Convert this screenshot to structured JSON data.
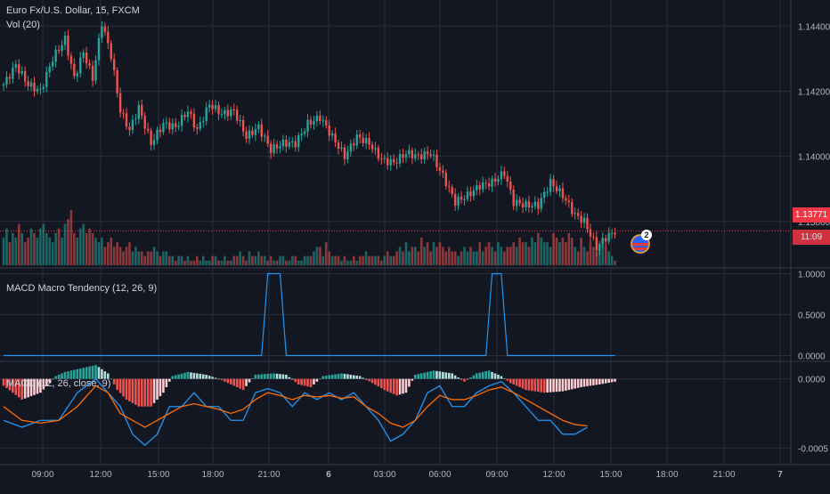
{
  "legend": {
    "symbol": "Euro Fx/U.S. Dollar, 15, FXCM",
    "volume": "Vol (20)",
    "tendency": "MACD Macro Tendency (12, 26, 9)",
    "macd": "MACD (12, 26, close, 9)"
  },
  "price_tags": {
    "last_price": "1.13771",
    "countdown": "11:09"
  },
  "event_badge": {
    "count": "2",
    "icon": "us-flag-icon"
  },
  "colors": {
    "up": "#26a69a",
    "down": "#ef5350",
    "macd_line": "#2196f3",
    "signal_line": "#ff6d00",
    "hist_up": "#26a69a",
    "hist_down": "#ef5350",
    "hist_up_light": "#b2dfdb",
    "hist_down_light": "#ffcdd2",
    "tendency_line": "#2196f3",
    "last_price": "#f23645"
  },
  "chart_data": [
    {
      "type": "candlestick",
      "title": "Euro Fx/U.S. Dollar, 15, FXCM",
      "x_ticks": [
        "09:00",
        "12:00",
        "15:00",
        "18:00",
        "21:00",
        "6",
        "03:00",
        "06:00",
        "09:00",
        "12:00",
        "15:00",
        "18:00",
        "21:00",
        "7"
      ],
      "y_ticks": [
        "1.14400",
        "1.14200",
        "1.14000",
        "1.13800"
      ],
      "ylim": [
        1.1366,
        1.1448
      ],
      "last_price": 1.13771,
      "close_path": [
        [
          0,
          1.1422
        ],
        [
          4,
          1.1428
        ],
        [
          8,
          1.1422
        ],
        [
          12,
          1.142
        ],
        [
          16,
          1.143
        ],
        [
          20,
          1.1436
        ],
        [
          23,
          1.1424
        ],
        [
          26,
          1.1432
        ],
        [
          29,
          1.1424
        ],
        [
          32,
          1.1441
        ],
        [
          35,
          1.1431
        ],
        [
          38,
          1.1414
        ],
        [
          41,
          1.1408
        ],
        [
          44,
          1.1415
        ],
        [
          48,
          1.1404
        ],
        [
          52,
          1.141
        ],
        [
          56,
          1.1409
        ],
        [
          60,
          1.1414
        ],
        [
          63,
          1.1408
        ],
        [
          67,
          1.1416
        ],
        [
          71,
          1.1413
        ],
        [
          75,
          1.1414
        ],
        [
          79,
          1.1406
        ],
        [
          83,
          1.1409
        ],
        [
          87,
          1.1402
        ],
        [
          91,
          1.1404
        ],
        [
          95,
          1.1404
        ],
        [
          99,
          1.141
        ],
        [
          103,
          1.1412
        ],
        [
          107,
          1.1406
        ],
        [
          111,
          1.14
        ],
        [
          115,
          1.1406
        ],
        [
          119,
          1.1404
        ],
        [
          123,
          1.1399
        ],
        [
          127,
          1.1398
        ],
        [
          131,
          1.1401
        ],
        [
          135,
          1.14
        ],
        [
          139,
          1.1401
        ],
        [
          143,
          1.1394
        ],
        [
          147,
          1.1386
        ],
        [
          151,
          1.1388
        ],
        [
          155,
          1.1391
        ],
        [
          159,
          1.1392
        ],
        [
          163,
          1.1395
        ],
        [
          166,
          1.1386
        ],
        [
          170,
          1.1385
        ],
        [
          174,
          1.1385
        ],
        [
          178,
          1.1392
        ],
        [
          182,
          1.1388
        ],
        [
          186,
          1.1382
        ],
        [
          189,
          1.138
        ],
        [
          193,
          1.1372
        ],
        [
          196,
          1.1375
        ],
        [
          199,
          1.1377
        ]
      ],
      "volume": [
        6,
        8,
        5,
        7,
        6,
        9,
        7,
        5,
        6,
        8,
        7,
        6,
        8,
        9,
        7,
        6,
        5,
        7,
        8,
        6,
        9,
        10,
        12,
        7,
        6,
        8,
        9,
        7,
        8,
        7,
        6,
        5,
        6,
        4,
        5,
        6,
        4,
        5,
        4,
        3,
        4,
        5,
        3,
        4,
        3,
        3,
        2,
        3,
        3,
        4,
        3,
        2,
        3,
        3,
        2,
        2,
        1,
        2,
        2,
        1,
        2,
        1,
        1,
        2,
        1,
        2,
        1,
        1,
        2,
        2,
        1,
        1,
        2,
        1,
        1,
        2,
        2,
        3,
        2,
        1,
        3,
        2,
        2,
        3,
        2,
        2,
        1,
        2,
        1,
        1,
        2,
        2,
        1,
        1,
        2,
        2,
        1,
        1,
        2,
        2,
        2,
        3,
        4,
        4,
        2,
        5,
        3,
        2,
        2,
        2,
        1,
        2,
        1,
        1,
        2,
        1,
        2,
        2,
        3,
        2,
        2,
        2,
        2,
        1,
        2,
        3,
        2,
        2,
        3,
        4,
        3,
        5,
        3,
        4,
        4,
        3,
        6,
        4,
        5,
        3,
        5,
        4,
        5,
        4,
        3,
        4,
        3,
        3,
        2,
        3,
        4,
        3,
        4,
        3,
        3,
        5,
        3,
        4,
        5,
        4,
        3,
        5,
        4,
        3,
        4,
        4,
        5,
        4,
        6,
        5,
        5,
        4,
        6,
        5,
        7,
        6,
        5,
        5,
        4,
        7,
        6,
        5,
        6,
        5,
        7,
        6,
        4,
        3,
        6,
        4,
        3,
        5,
        4,
        3,
        4,
        6,
        4,
        3,
        2,
        1
      ]
    },
    {
      "type": "line",
      "title": "MACD Macro Tendency (12, 26, 9)",
      "y_ticks": [
        "1.0000",
        "0.5000",
        "0.0000"
      ],
      "ylim": [
        -0.06,
        1.06
      ],
      "segments": [
        [
          0,
          0
        ],
        [
          84,
          0
        ],
        [
          86,
          1
        ],
        [
          90,
          1
        ],
        [
          92,
          0
        ],
        [
          157,
          0
        ],
        [
          159,
          1
        ],
        [
          162,
          1
        ],
        [
          164,
          0
        ],
        [
          199,
          0
        ]
      ]
    },
    {
      "type": "histogram+line",
      "title": "MACD (12, 26, close, 9)",
      "y_ticks": [
        "0.0000",
        "-0.0005"
      ],
      "ylim": [
        -0.00062,
        0.00012
      ],
      "histogram": [
        [
          0,
          -5e-05
        ],
        [
          6,
          -0.00015
        ],
        [
          12,
          -0.0001
        ],
        [
          17,
          2e-05
        ],
        [
          20,
          5e-05
        ],
        [
          26,
          8e-05
        ],
        [
          30,
          0.0001
        ],
        [
          34,
          4e-05
        ],
        [
          37,
          -8e-05
        ],
        [
          40,
          -0.00015
        ],
        [
          44,
          -0.0002
        ],
        [
          48,
          -0.0002
        ],
        [
          52,
          -0.0001
        ],
        [
          55,
          2e-05
        ],
        [
          60,
          5e-05
        ],
        [
          66,
          3e-05
        ],
        [
          70,
          0.0
        ],
        [
          74,
          -4e-05
        ],
        [
          78,
          -8e-05
        ],
        [
          82,
          3e-05
        ],
        [
          88,
          4e-05
        ],
        [
          92,
          3e-05
        ],
        [
          96,
          -4e-05
        ],
        [
          100,
          -6e-05
        ],
        [
          104,
          2e-05
        ],
        [
          110,
          4e-05
        ],
        [
          116,
          2e-05
        ],
        [
          120,
          -3e-05
        ],
        [
          124,
          -8e-05
        ],
        [
          128,
          -0.00012
        ],
        [
          131,
          -0.0001
        ],
        [
          134,
          3e-05
        ],
        [
          140,
          6e-05
        ],
        [
          146,
          4e-05
        ],
        [
          150,
          -2e-05
        ],
        [
          154,
          4e-05
        ],
        [
          158,
          6e-05
        ],
        [
          162,
          2e-05
        ],
        [
          165,
          -3e-05
        ],
        [
          170,
          -8e-05
        ],
        [
          176,
          -0.0001
        ],
        [
          182,
          -9e-05
        ],
        [
          188,
          -6e-05
        ],
        [
          194,
          -4e-05
        ],
        [
          199,
          -2e-05
        ]
      ],
      "macd_line": [
        [
          0,
          -0.0003
        ],
        [
          6,
          -0.00035
        ],
        [
          12,
          -0.0003
        ],
        [
          18,
          -0.0003
        ],
        [
          24,
          -0.0001
        ],
        [
          30,
          0.0
        ],
        [
          34,
          -0.0001
        ],
        [
          38,
          -0.0002
        ],
        [
          42,
          -0.0004
        ],
        [
          46,
          -0.00048
        ],
        [
          50,
          -0.0004
        ],
        [
          54,
          -0.0002
        ],
        [
          58,
          -0.0002
        ],
        [
          62,
          -0.0001
        ],
        [
          66,
          -0.0002
        ],
        [
          70,
          -0.0002
        ],
        [
          74,
          -0.0003
        ],
        [
          78,
          -0.0003
        ],
        [
          82,
          -0.0001
        ],
        [
          86,
          -7e-05
        ],
        [
          90,
          -0.0001
        ],
        [
          94,
          -0.0002
        ],
        [
          98,
          -0.0001
        ],
        [
          102,
          -0.00015
        ],
        [
          106,
          -0.0001
        ],
        [
          110,
          -0.00015
        ],
        [
          114,
          -0.0001
        ],
        [
          118,
          -0.0002
        ],
        [
          122,
          -0.0003
        ],
        [
          126,
          -0.00045
        ],
        [
          130,
          -0.0004
        ],
        [
          134,
          -0.0003
        ],
        [
          138,
          -0.0001
        ],
        [
          142,
          -5e-05
        ],
        [
          146,
          -0.0002
        ],
        [
          150,
          -0.0002
        ],
        [
          154,
          -0.0001
        ],
        [
          158,
          -5e-05
        ],
        [
          162,
          -2e-05
        ],
        [
          166,
          -0.0001
        ],
        [
          170,
          -0.0002
        ],
        [
          174,
          -0.0003
        ],
        [
          178,
          -0.0003
        ],
        [
          182,
          -0.0004
        ],
        [
          186,
          -0.0004
        ],
        [
          190,
          -0.00035
        ]
      ],
      "signal_line": [
        [
          0,
          -0.0002
        ],
        [
          6,
          -0.0003
        ],
        [
          12,
          -0.00032
        ],
        [
          18,
          -0.0003
        ],
        [
          24,
          -0.0002
        ],
        [
          30,
          -5e-05
        ],
        [
          34,
          -0.0001
        ],
        [
          38,
          -0.00025
        ],
        [
          42,
          -0.0003
        ],
        [
          46,
          -0.00035
        ],
        [
          50,
          -0.0003
        ],
        [
          54,
          -0.00025
        ],
        [
          58,
          -0.0002
        ],
        [
          62,
          -0.00018
        ],
        [
          66,
          -0.0002
        ],
        [
          70,
          -0.00022
        ],
        [
          74,
          -0.00025
        ],
        [
          78,
          -0.00022
        ],
        [
          82,
          -0.00015
        ],
        [
          86,
          -0.0001
        ],
        [
          90,
          -0.00012
        ],
        [
          94,
          -0.00015
        ],
        [
          98,
          -0.00012
        ],
        [
          102,
          -0.00013
        ],
        [
          106,
          -0.00012
        ],
        [
          110,
          -0.00014
        ],
        [
          114,
          -0.00013
        ],
        [
          118,
          -0.0002
        ],
        [
          122,
          -0.00025
        ],
        [
          126,
          -0.00032
        ],
        [
          130,
          -0.00035
        ],
        [
          134,
          -0.0003
        ],
        [
          138,
          -0.0002
        ],
        [
          142,
          -0.00012
        ],
        [
          146,
          -0.00015
        ],
        [
          150,
          -0.00015
        ],
        [
          154,
          -0.00012
        ],
        [
          158,
          -8e-05
        ],
        [
          162,
          -6e-05
        ],
        [
          166,
          -0.0001
        ],
        [
          170,
          -0.00015
        ],
        [
          174,
          -0.0002
        ],
        [
          178,
          -0.00025
        ],
        [
          182,
          -0.0003
        ],
        [
          186,
          -0.00033
        ],
        [
          190,
          -0.00034
        ]
      ]
    }
  ]
}
